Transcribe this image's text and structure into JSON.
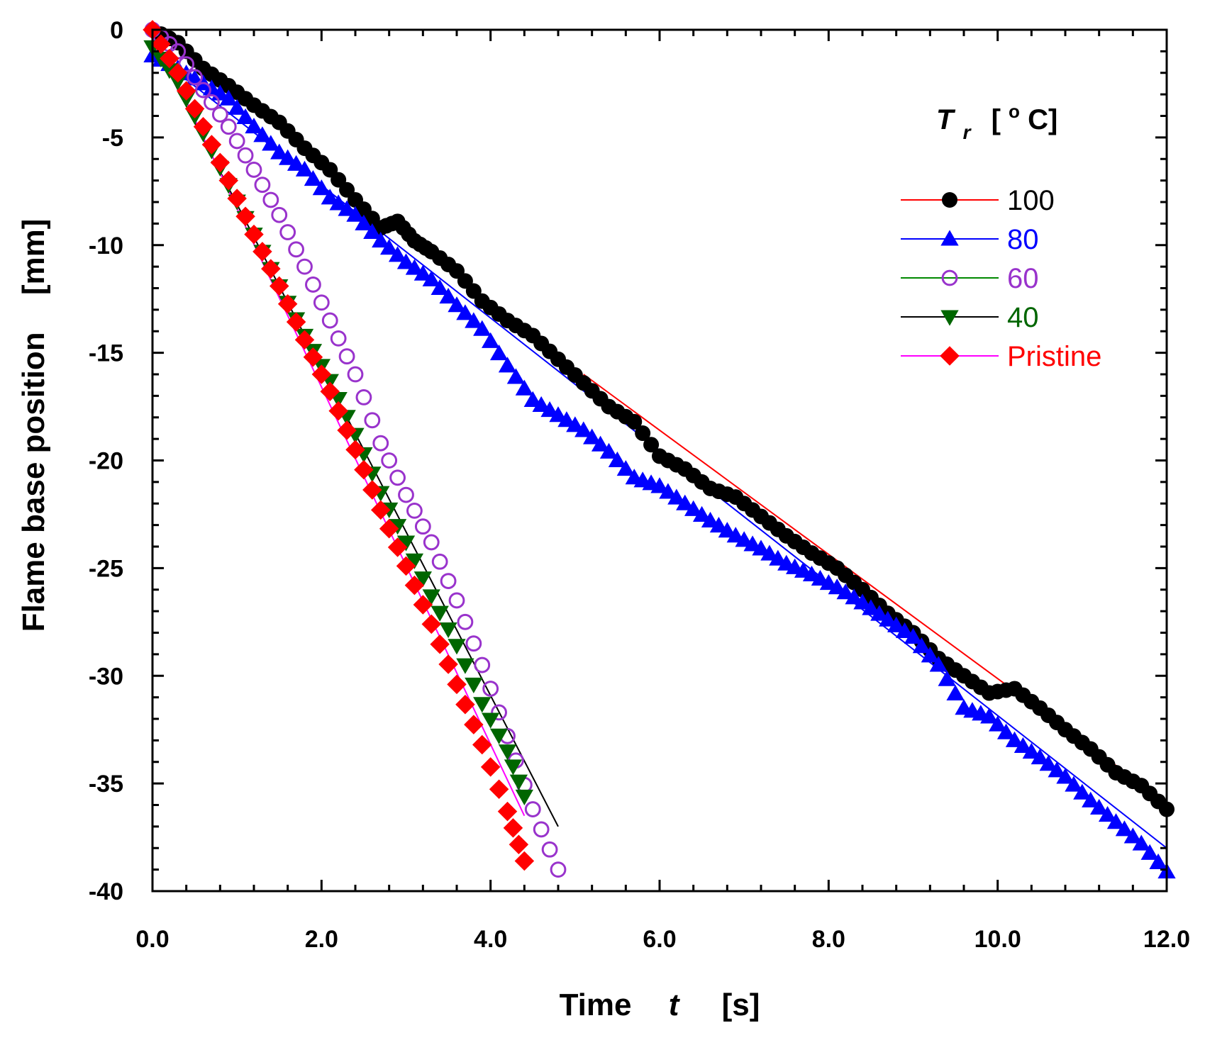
{
  "chart_data": {
    "type": "scatter",
    "title": "",
    "xlabel": {
      "main": "Time",
      "symbol": "t",
      "unit": "[s]"
    },
    "ylabel": {
      "main": "Flame base position",
      "unit": "[mm]"
    },
    "xlim": [
      0,
      12
    ],
    "ylim": [
      -40,
      0
    ],
    "x_ticks": [
      0,
      2,
      4,
      6,
      8,
      10,
      12
    ],
    "x_tick_labels": [
      "0.0",
      "2.0",
      "4.0",
      "6.0",
      "8.0",
      "10.0",
      "12.0"
    ],
    "y_ticks": [
      0,
      -5,
      -10,
      -15,
      -20,
      -25,
      -30,
      -35,
      -40
    ],
    "y_tick_labels": [
      "0",
      "-5",
      "-10",
      "-15",
      "-20",
      "-25",
      "-30",
      "-35",
      "-40"
    ],
    "grid": false,
    "legend": {
      "position": "top-right",
      "title_symbol": "T",
      "title_subscript": "r",
      "title_unit_open": "[",
      "title_degree": "o",
      "title_unit_close": "C]"
    },
    "series": [
      {
        "name": "100",
        "marker": "circle",
        "marker_color": "#000000",
        "line_color": "#ff0000",
        "label_color": "#000000",
        "fit": [
          [
            5.1,
            -16.0
          ],
          [
            12.0,
            -35.9
          ]
        ],
        "x": [
          0.0,
          0.3,
          0.6,
          0.9,
          1.2,
          1.5,
          1.8,
          2.1,
          2.4,
          2.7,
          2.9,
          3.1,
          3.3,
          3.6,
          3.9,
          4.2,
          4.5,
          4.8,
          5.1,
          5.4,
          5.7,
          6.0,
          6.3,
          6.6,
          6.9,
          7.2,
          7.5,
          7.8,
          8.1,
          8.4,
          8.7,
          9.0,
          9.3,
          9.6,
          9.9,
          10.2,
          10.5,
          10.8,
          11.1,
          11.4,
          11.7,
          12.0
        ],
        "y": [
          0.0,
          -0.6,
          -1.8,
          -2.6,
          -3.5,
          -4.3,
          -5.5,
          -6.5,
          -7.9,
          -9.2,
          -8.9,
          -9.8,
          -10.3,
          -11.2,
          -12.6,
          -13.5,
          -14.2,
          -15.3,
          -16.4,
          -17.5,
          -18.2,
          -19.8,
          -20.4,
          -21.3,
          -21.7,
          -22.6,
          -23.5,
          -24.3,
          -25.0,
          -26.0,
          -27.1,
          -28.0,
          -29.2,
          -30.0,
          -30.8,
          -30.6,
          -31.5,
          -32.5,
          -33.4,
          -34.5,
          -35.1,
          -36.2
        ]
      },
      {
        "name": "80",
        "marker": "triangle-up",
        "marker_color": "#0000ff",
        "line_color": "#0000ff",
        "label_color": "#0000ff",
        "fit": [
          [
            0.3,
            -2.0
          ],
          [
            12.0,
            -38.0
          ]
        ],
        "x": [
          0.0,
          0.3,
          0.6,
          0.9,
          1.2,
          1.5,
          1.8,
          2.1,
          2.4,
          2.7,
          3.0,
          3.3,
          3.6,
          3.9,
          4.2,
          4.5,
          4.8,
          5.1,
          5.4,
          5.7,
          6.0,
          6.3,
          6.6,
          6.9,
          7.2,
          7.5,
          7.8,
          8.1,
          8.4,
          8.7,
          9.0,
          9.3,
          9.6,
          9.9,
          10.2,
          10.5,
          10.8,
          11.1,
          11.4,
          11.7,
          12.0
        ],
        "y": [
          -1.2,
          -1.8,
          -2.5,
          -3.2,
          -4.5,
          -5.7,
          -6.5,
          -7.8,
          -8.6,
          -9.8,
          -10.8,
          -11.6,
          -12.8,
          -13.9,
          -15.6,
          -17.2,
          -17.9,
          -18.6,
          -19.6,
          -20.8,
          -21.2,
          -22.0,
          -22.8,
          -23.5,
          -24.1,
          -24.8,
          -25.3,
          -25.9,
          -26.6,
          -27.4,
          -28.2,
          -29.5,
          -31.5,
          -31.9,
          -33.0,
          -33.8,
          -34.7,
          -35.8,
          -36.8,
          -37.8,
          -39.1
        ]
      },
      {
        "name": "60",
        "marker": "circle-open",
        "marker_color": "#9933cc",
        "line_color": "#008800",
        "label_color": "#9933cc",
        "fit": null,
        "x": [
          0.0,
          0.3,
          0.6,
          0.9,
          1.2,
          1.5,
          1.8,
          2.1,
          2.4,
          2.7,
          3.0,
          3.3,
          3.6,
          3.9,
          4.2,
          4.5,
          4.8
        ],
        "y": [
          0.0,
          -1.0,
          -2.8,
          -4.5,
          -6.5,
          -8.6,
          -11.0,
          -13.5,
          -16.0,
          -19.2,
          -21.6,
          -23.8,
          -26.5,
          -29.5,
          -32.8,
          -36.2,
          -39.0
        ]
      },
      {
        "name": "40",
        "marker": "triangle-down",
        "marker_color": "#006600",
        "line_color": "#000000",
        "label_color": "#006600",
        "fit": [
          [
            0.0,
            -0.5
          ],
          [
            4.8,
            -37.0
          ]
        ],
        "x": [
          0.0,
          0.3,
          0.6,
          0.9,
          1.2,
          1.5,
          1.8,
          2.1,
          2.4,
          2.7,
          3.0,
          3.3,
          3.6,
          3.9,
          4.2,
          4.4
        ],
        "y": [
          -0.8,
          -2.4,
          -4.8,
          -7.2,
          -9.5,
          -11.9,
          -14.2,
          -16.3,
          -18.8,
          -21.5,
          -23.8,
          -26.3,
          -28.6,
          -31.3,
          -33.5,
          -35.6
        ]
      },
      {
        "name": "Pristine",
        "marker": "diamond",
        "marker_color": "#ff0000",
        "line_color": "#ff00ff",
        "label_color": "#ff0000",
        "fit": [
          [
            0.0,
            0.0
          ],
          [
            4.4,
            -36.5
          ]
        ],
        "x": [
          0.0,
          0.3,
          0.6,
          0.9,
          1.2,
          1.5,
          1.8,
          2.1,
          2.4,
          2.7,
          3.0,
          3.3,
          3.6,
          3.9,
          4.2,
          4.4
        ],
        "y": [
          0.0,
          -2.0,
          -4.5,
          -7.0,
          -9.5,
          -11.9,
          -14.4,
          -16.8,
          -19.5,
          -22.3,
          -24.9,
          -27.6,
          -30.4,
          -33.2,
          -36.3,
          -38.6
        ]
      }
    ]
  }
}
